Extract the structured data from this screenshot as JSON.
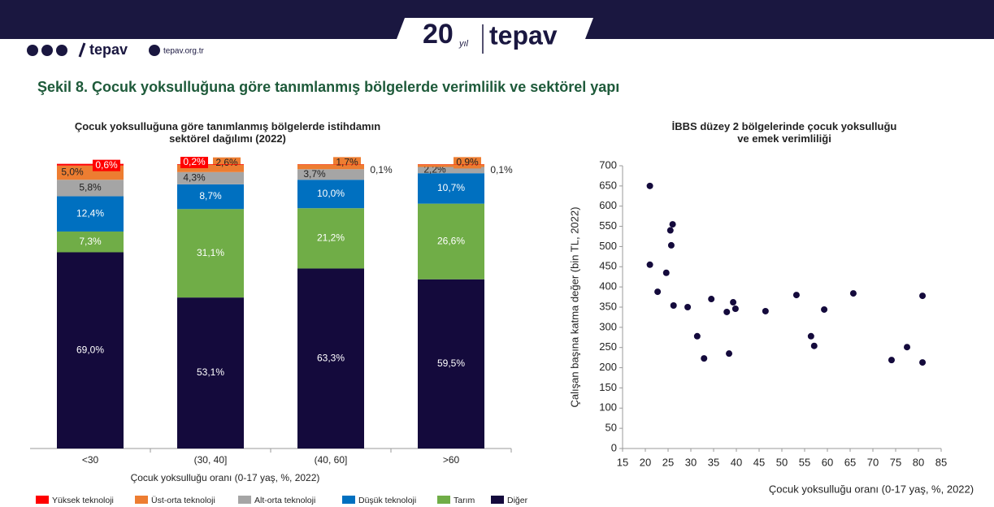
{
  "header": {
    "brand_left": "tepav",
    "site": "tepav.org.tr",
    "badge_number": "20",
    "badge_suffix": "yıl",
    "brand_center": "tepav"
  },
  "figure_title": "Şekil 8. Çocuk yoksulluğuna göre tanımlanmış bölgelerde verimlilik ve sektörel yapı",
  "chart_data": [
    {
      "type": "stacked_bar",
      "title": "Çocuk yoksulluğuna göre tanımlanmış bölgelerde istihdamın sektörel dağılımı (2022)",
      "x_label": "Çocuk yoksulluğu oranı (0-17 yaş, %, 2022)",
      "categories": [
        "<30",
        "(30, 40]",
        "(40, 60]",
        ">60"
      ],
      "ylim": [
        0,
        100
      ],
      "series": [
        {
          "name": "Yüksek teknoloji",
          "color": "#ff0000",
          "values": [
            0.6,
            0.2,
            0.1,
            0.1
          ],
          "value_labels": [
            "0,6%",
            "0,2%",
            "0,1%",
            "0,1%"
          ]
        },
        {
          "name": "Üst-orta teknoloji",
          "color": "#ed7d31",
          "values": [
            5.0,
            2.6,
            1.7,
            0.9
          ],
          "value_labels": [
            "5,0%",
            "2,6%",
            "1,7%",
            "0,9%"
          ]
        },
        {
          "name": "Alt-orta teknoloji",
          "color": "#a5a5a5",
          "values": [
            5.8,
            4.3,
            3.7,
            2.2
          ],
          "value_labels": [
            "5,8%",
            "4,3%",
            "3,7%",
            "2,2%"
          ]
        },
        {
          "name": "Düşük teknoloji",
          "color": "#0070c0",
          "values": [
            12.4,
            8.7,
            10.0,
            10.7
          ],
          "value_labels": [
            "12,4%",
            "8,7%",
            "10,0%",
            "10,7%"
          ]
        },
        {
          "name": "Tarım",
          "color": "#70ad47",
          "values": [
            7.3,
            31.1,
            21.2,
            26.6
          ],
          "value_labels": [
            "7,3%",
            "31,1%",
            "21,2%",
            "26,6%"
          ]
        },
        {
          "name": "Diğer",
          "color": "#140a3c",
          "values": [
            69.0,
            53.1,
            63.3,
            59.5
          ],
          "value_labels": [
            "69,0%",
            "53,1%",
            "63,3%",
            "59,5%"
          ]
        }
      ]
    },
    {
      "type": "scatter",
      "title": "İBBS düzey 2 bölgelerinde çocuk yoksulluğu ve emek verimliliği",
      "x_label": "Çocuk yoksulluğu oranı (0-17 yaş, %, 2022)",
      "y_label": "Çalışan başına katma değer (bin TL, 2022)",
      "color": "#140a3c",
      "x": [
        21,
        21,
        22.7,
        24.6,
        25.5,
        26,
        25.7,
        26.2,
        29.3,
        31.4,
        32.9,
        34.5,
        37.9,
        38.4,
        39.3,
        39.8,
        46.4,
        53.2,
        56.4,
        57.1,
        59.3,
        65.7,
        74.1,
        77.5,
        80.9,
        80.9
      ],
      "values": [
        650,
        455,
        388,
        435,
        540,
        555,
        503,
        354,
        350,
        278,
        223,
        370,
        338,
        235,
        362,
        346,
        340,
        380,
        278,
        254,
        344,
        384,
        219,
        251,
        378,
        213
      ],
      "xlim": [
        15,
        85
      ],
      "xticks": [
        15,
        20,
        25,
        30,
        35,
        40,
        45,
        50,
        55,
        60,
        65,
        70,
        75,
        80,
        85
      ],
      "ylim": [
        0,
        700
      ],
      "yticks": [
        0,
        50,
        100,
        150,
        200,
        250,
        300,
        350,
        400,
        450,
        500,
        550,
        600,
        650,
        700
      ]
    }
  ]
}
